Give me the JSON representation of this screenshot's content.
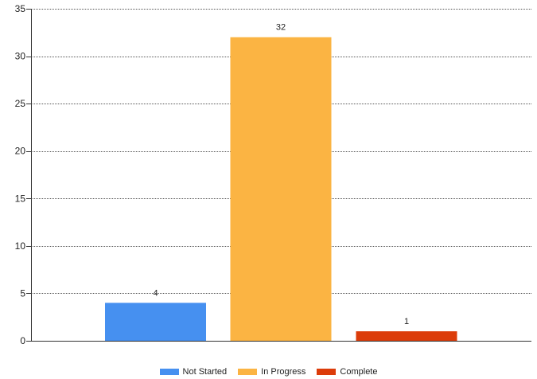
{
  "chart_data": {
    "type": "bar",
    "categories": [
      "Not Started",
      "In Progress",
      "Complete"
    ],
    "values": [
      4,
      32,
      1
    ],
    "data_labels": [
      "4",
      "32",
      "1"
    ],
    "colors": [
      "#4690f0",
      "#fbb443",
      "#dc3c0a"
    ],
    "ylim": [
      0,
      35
    ],
    "yticks": [
      0,
      5,
      10,
      15,
      20,
      25,
      30,
      35
    ],
    "ytick_labels": [
      "0",
      "5",
      "10",
      "15",
      "20",
      "25",
      "30",
      "35"
    ],
    "grid": true,
    "legend_position": "bottom",
    "title": "",
    "xlabel": "",
    "ylabel": ""
  },
  "legend": {
    "items": [
      {
        "label": "Not Started",
        "color": "#4690f0"
      },
      {
        "label": "In Progress",
        "color": "#fbb443"
      },
      {
        "label": "Complete",
        "color": "#dc3c0a"
      }
    ]
  }
}
